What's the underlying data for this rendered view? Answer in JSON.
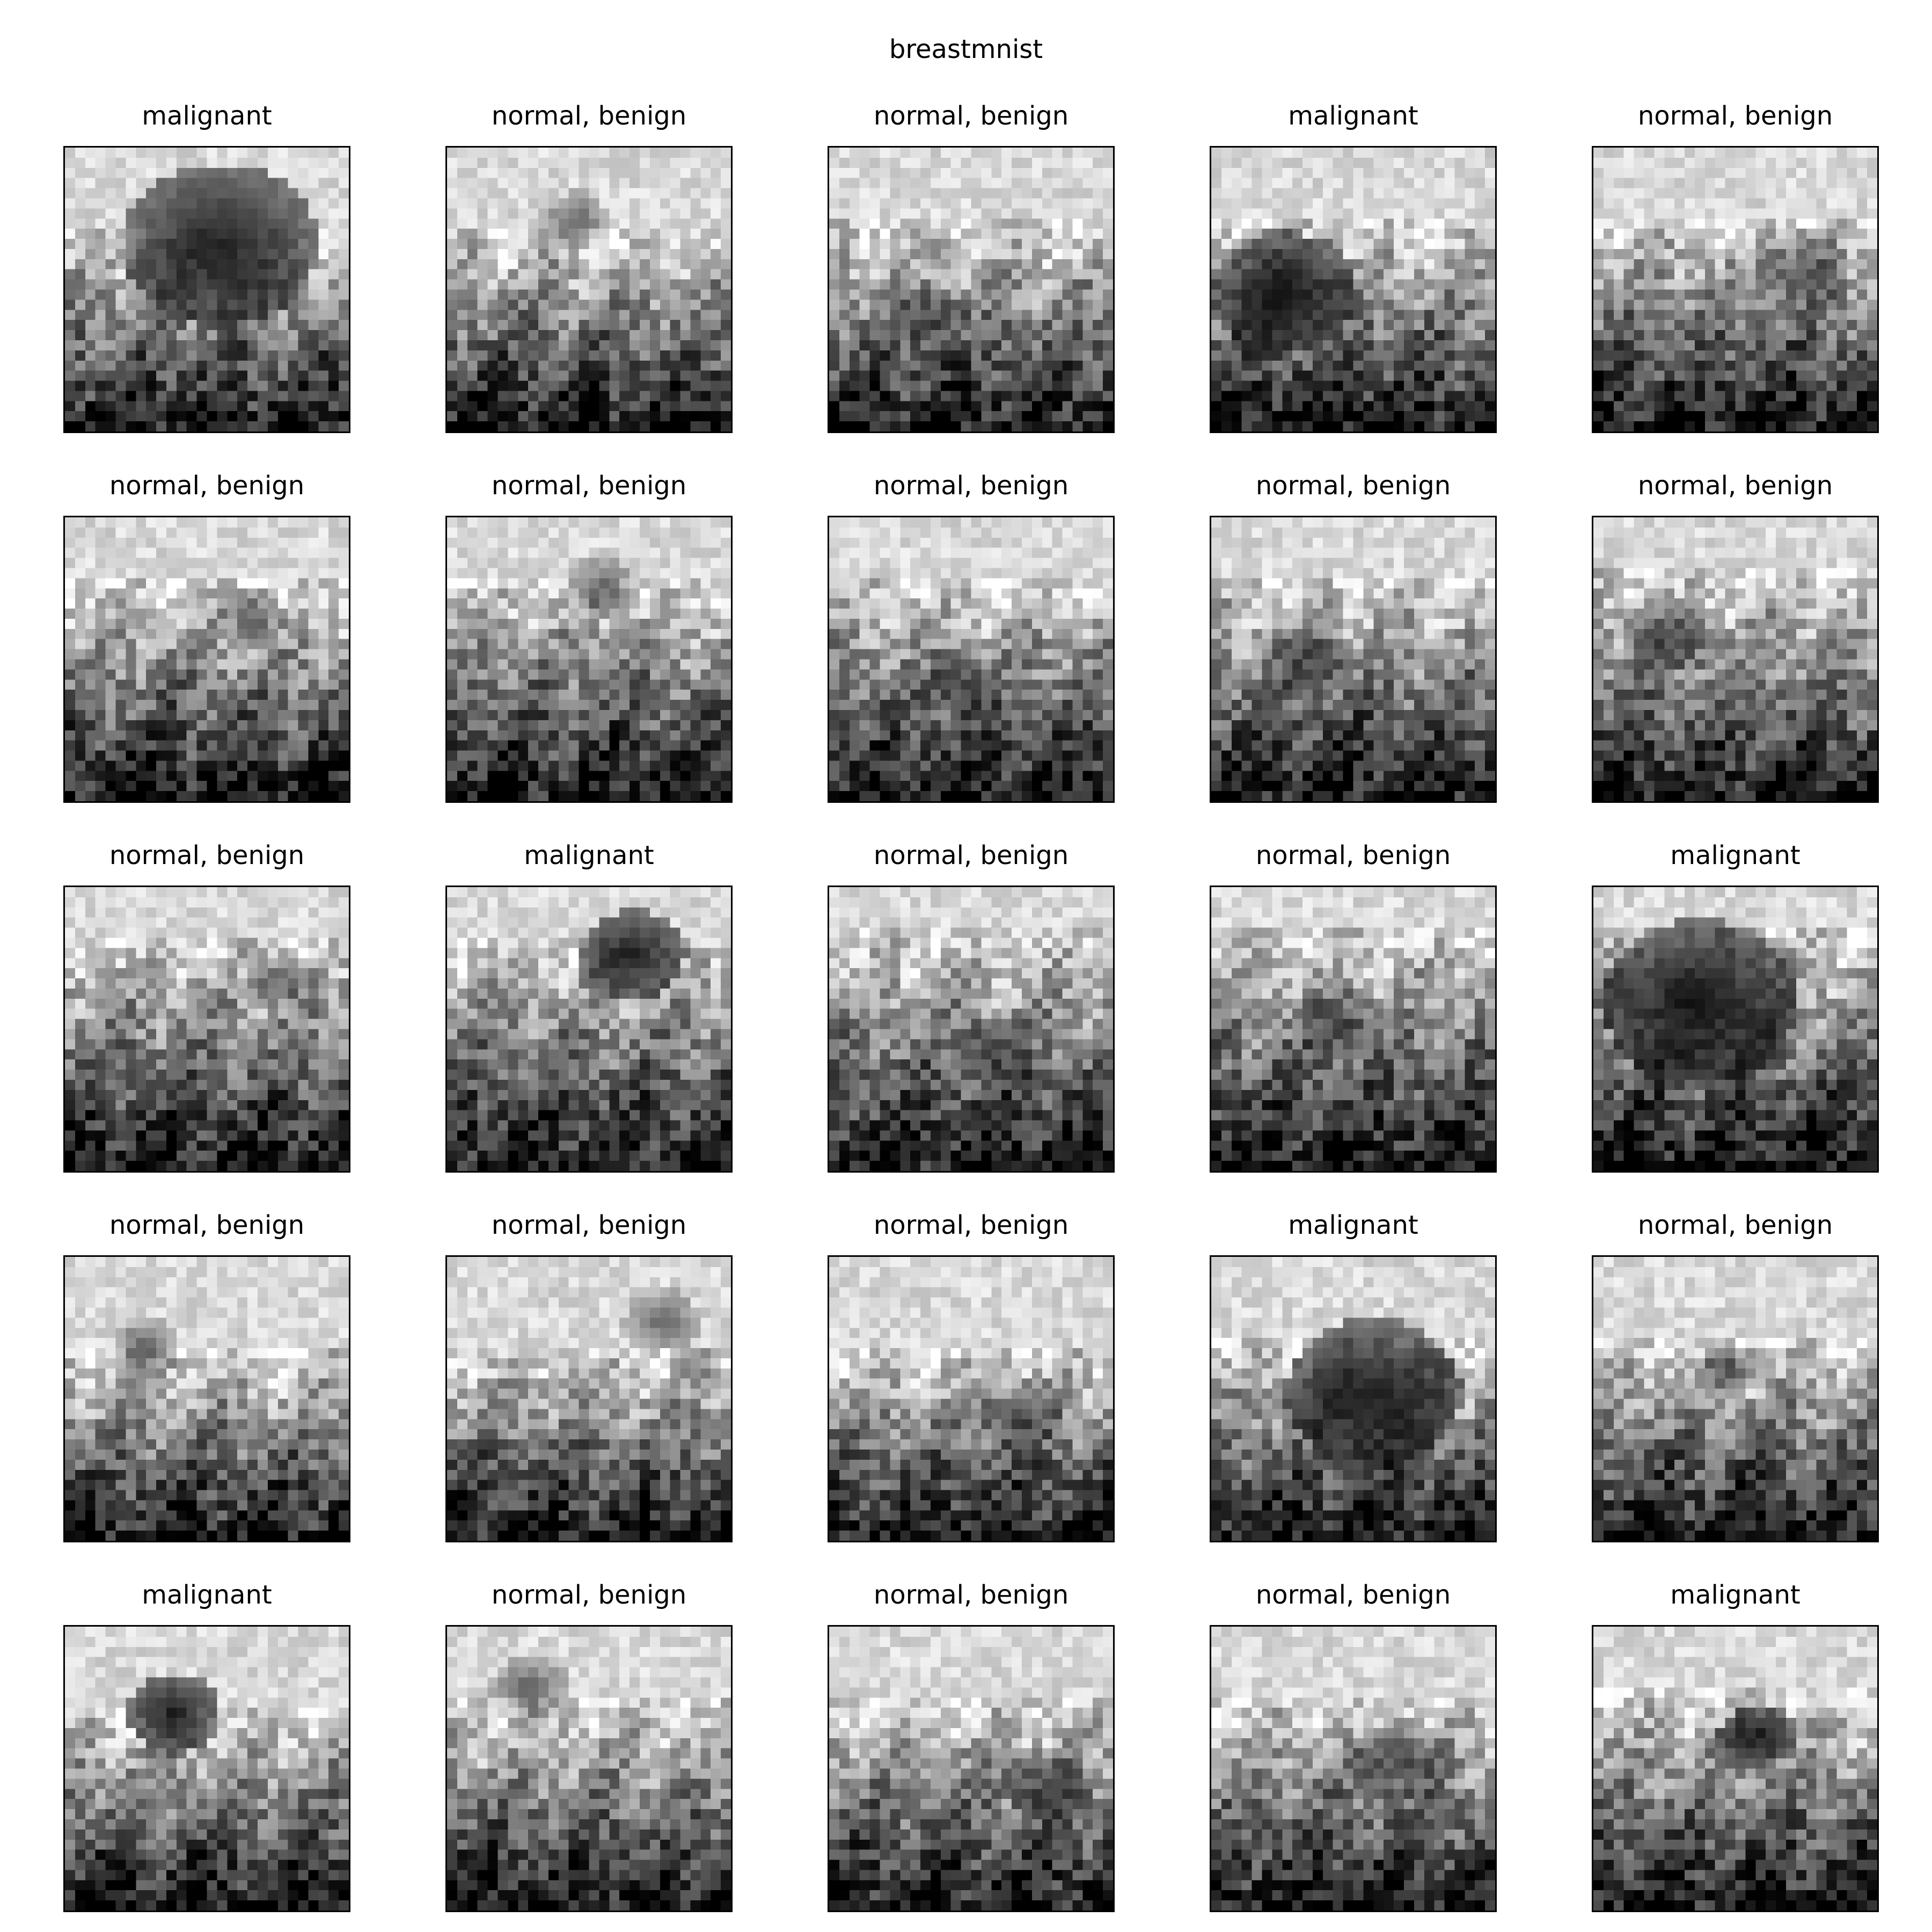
{
  "figure": {
    "title": "breastmnist",
    "grid": {
      "rows": 5,
      "cols": 5
    },
    "image_resolution": "28x28 grayscale",
    "samples": [
      {
        "label": "malignant"
      },
      {
        "label": "normal, benign"
      },
      {
        "label": "normal, benign"
      },
      {
        "label": "malignant"
      },
      {
        "label": "normal, benign"
      },
      {
        "label": "normal, benign"
      },
      {
        "label": "normal, benign"
      },
      {
        "label": "normal, benign"
      },
      {
        "label": "normal, benign"
      },
      {
        "label": "normal, benign"
      },
      {
        "label": "normal, benign"
      },
      {
        "label": "malignant"
      },
      {
        "label": "normal, benign"
      },
      {
        "label": "normal, benign"
      },
      {
        "label": "malignant"
      },
      {
        "label": "normal, benign"
      },
      {
        "label": "normal, benign"
      },
      {
        "label": "normal, benign"
      },
      {
        "label": "malignant"
      },
      {
        "label": "normal, benign"
      },
      {
        "label": "malignant"
      },
      {
        "label": "normal, benign"
      },
      {
        "label": "normal, benign"
      },
      {
        "label": "normal, benign"
      },
      {
        "label": "malignant"
      }
    ]
  }
}
